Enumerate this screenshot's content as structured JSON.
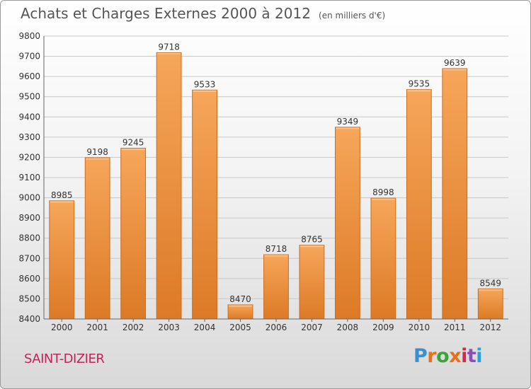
{
  "title": "Achats et Charges Externes 2000 à 2012",
  "subtitle": "(en milliers d'€)",
  "location": "SAINT-DIZIER",
  "brand": {
    "letters": [
      "P",
      "r",
      "o",
      "x",
      "i",
      "t",
      "i"
    ],
    "colors": [
      "#3a8fd0",
      "#e8701a",
      "#3aa53a",
      "#e8701a",
      "#d8264f",
      "#8a4fb4",
      "#2aa0d8"
    ]
  },
  "colors": {
    "bar_top": "#f6a65a",
    "bar_bottom": "#dc7a26",
    "bar_edge": "#cf6c1c",
    "grid": "#c8c8c8"
  },
  "chart_data": {
    "type": "bar",
    "categories": [
      "2000",
      "2001",
      "2002",
      "2003",
      "2004",
      "2005",
      "2006",
      "2007",
      "2008",
      "2009",
      "2010",
      "2011",
      "2012"
    ],
    "values": [
      8985,
      9198,
      9245,
      9718,
      9533,
      8470,
      8718,
      8765,
      9349,
      8998,
      9535,
      9639,
      8549
    ],
    "ylim": [
      8400,
      9800
    ],
    "yticks": [
      8400,
      8500,
      8600,
      8700,
      8800,
      8900,
      9000,
      9100,
      9200,
      9300,
      9400,
      9500,
      9600,
      9700,
      9800
    ],
    "grid": true,
    "data_labels": true
  }
}
